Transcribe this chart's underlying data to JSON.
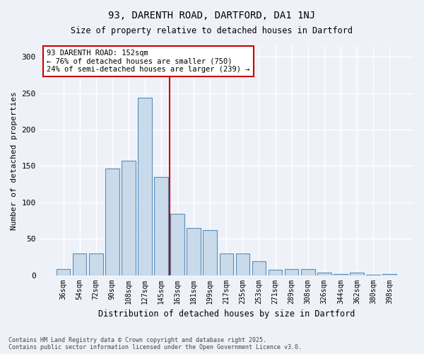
{
  "title1": "93, DARENTH ROAD, DARTFORD, DA1 1NJ",
  "title2": "Size of property relative to detached houses in Dartford",
  "xlabel": "Distribution of detached houses by size in Dartford",
  "ylabel": "Number of detached properties",
  "categories": [
    "36sqm",
    "54sqm",
    "72sqm",
    "90sqm",
    "108sqm",
    "127sqm",
    "145sqm",
    "163sqm",
    "181sqm",
    "199sqm",
    "217sqm",
    "235sqm",
    "253sqm",
    "271sqm",
    "289sqm",
    "308sqm",
    "326sqm",
    "344sqm",
    "362sqm",
    "380sqm",
    "398sqm"
  ],
  "values": [
    8,
    30,
    30,
    147,
    157,
    244,
    135,
    84,
    65,
    62,
    30,
    30,
    19,
    7,
    8,
    8,
    3,
    2,
    3,
    1,
    2
  ],
  "bar_color": "#c9daea",
  "bar_edge_color": "#5b8db8",
  "vline_color": "#cc0000",
  "vline_pos": 6.5,
  "annotation_line1": "93 DARENTH ROAD: 152sqm",
  "annotation_line2": "← 76% of detached houses are smaller (750)",
  "annotation_line3": "24% of semi-detached houses are larger (239) →",
  "annotation_box_color": "#ffffff",
  "annotation_box_edge": "#cc0000",
  "background_color": "#eef2f8",
  "grid_color": "#ffffff",
  "footer1": "Contains HM Land Registry data © Crown copyright and database right 2025.",
  "footer2": "Contains public sector information licensed under the Open Government Licence v3.0.",
  "ylim": [
    0,
    315
  ],
  "yticks": [
    0,
    50,
    100,
    150,
    200,
    250,
    300
  ]
}
